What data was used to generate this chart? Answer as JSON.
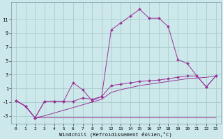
{
  "xlabel": "Windchill (Refroidissement éolien,°C)",
  "bg_color": "#cce8ea",
  "grid_color": "#aacccc",
  "line_color": "#993399",
  "x_ticks": [
    0,
    1,
    2,
    3,
    4,
    5,
    6,
    7,
    8,
    9,
    12,
    13,
    14,
    15,
    16,
    17,
    18,
    19,
    20,
    21,
    22,
    23
  ],
  "xlim": [
    -0.5,
    23.5
  ],
  "ylim": [
    -4.2,
    13.5
  ],
  "yticks": [
    -3,
    -1,
    1,
    3,
    5,
    7,
    9,
    11
  ],
  "s1_x": [
    0,
    1,
    2,
    3,
    4,
    5,
    6,
    7,
    8,
    9,
    12,
    13,
    14,
    15,
    16,
    17,
    18,
    19,
    20,
    21,
    22,
    23
  ],
  "s1_y": [
    -0.8,
    -1.6,
    -3.3,
    -3.3,
    -3.3,
    -3.3,
    -3.3,
    -3.3,
    -3.3,
    -3.3,
    -3.3,
    -3.3,
    -3.3,
    -3.3,
    -3.3,
    -3.3,
    -3.3,
    -3.3,
    -3.3,
    -3.3,
    -3.3,
    -3.3
  ],
  "s2_x": [
    0,
    1,
    2,
    3,
    4,
    5,
    6,
    7,
    8,
    9,
    12,
    13,
    14,
    15,
    16,
    17,
    18,
    19,
    20,
    21,
    22,
    23
  ],
  "s2_y": [
    -0.8,
    -1.6,
    -3.3,
    -3.0,
    -2.6,
    -2.2,
    -1.8,
    -1.4,
    -1.0,
    -0.6,
    0.4,
    0.8,
    1.1,
    1.4,
    1.6,
    1.8,
    2.0,
    2.2,
    2.4,
    2.5,
    2.6,
    2.8
  ],
  "s3_x": [
    0,
    1,
    2,
    3,
    4,
    5,
    6,
    7,
    8,
    9,
    12,
    13,
    14,
    15,
    16,
    17,
    18,
    19,
    20,
    21,
    22,
    23
  ],
  "s3_y": [
    -0.8,
    -1.6,
    -3.3,
    -0.9,
    -0.9,
    -0.9,
    -0.9,
    -0.4,
    -0.6,
    -0.2,
    1.4,
    1.6,
    1.8,
    2.0,
    2.1,
    2.2,
    2.4,
    2.6,
    2.8,
    2.8,
    1.2,
    2.8
  ],
  "s4_x": [
    0,
    1,
    2,
    3,
    4,
    5,
    6,
    7,
    8,
    9,
    12,
    13,
    14,
    15,
    16,
    17,
    18,
    19,
    20,
    21,
    22,
    23
  ],
  "s4_y": [
    -0.8,
    -1.6,
    -3.3,
    -0.9,
    -0.9,
    -0.9,
    1.8,
    0.8,
    -0.8,
    -0.2,
    9.5,
    10.5,
    11.5,
    12.5,
    11.2,
    11.2,
    10.0,
    5.2,
    4.6,
    2.8,
    1.2,
    2.8
  ]
}
